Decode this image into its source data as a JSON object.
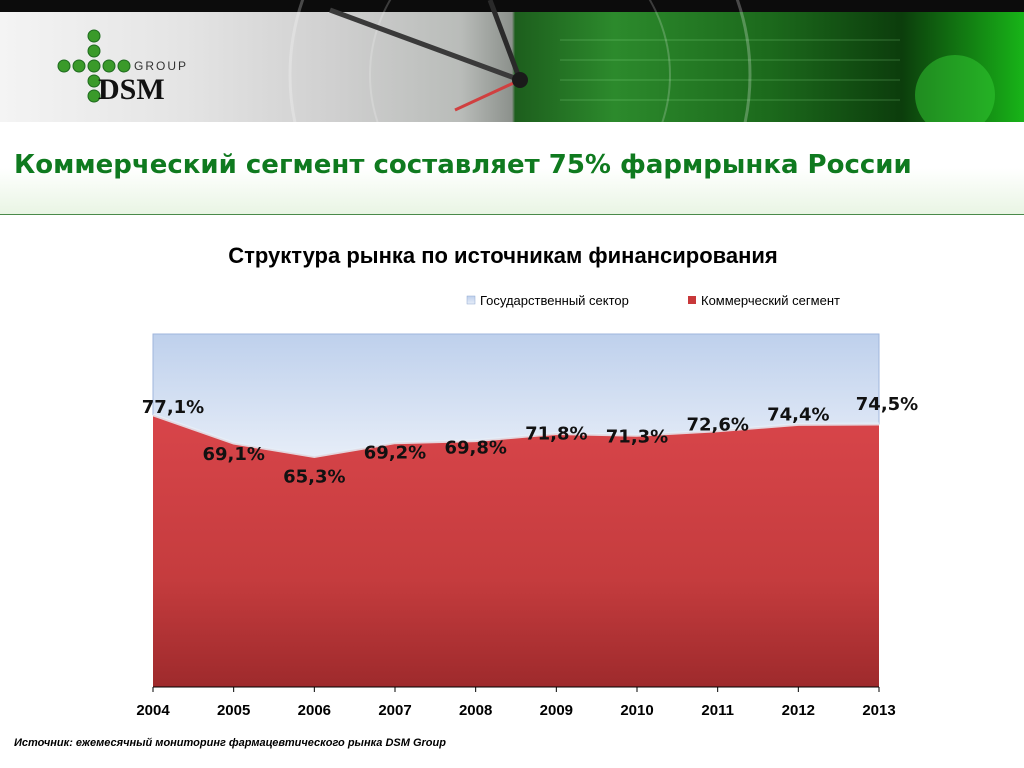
{
  "header": {
    "logo_group_text": "GROUP",
    "logo_brand_text": "DSM",
    "colors": {
      "brand_green": "#0f7a1f",
      "logo_green": "#3a9a2a"
    }
  },
  "page": {
    "title": "Коммерческий сегмент составляет 75% фармрынка России",
    "source": "Источник: ежемесячный мониторинг фармацевтического рынка DSM Group"
  },
  "chart_data": {
    "type": "area",
    "stacked_percent": true,
    "title": "Структура рынка по источникам финансирования",
    "xlabel": "",
    "ylabel": "",
    "x": [
      "2004",
      "2005",
      "2006",
      "2007",
      "2008",
      "2009",
      "2010",
      "2011",
      "2012",
      "2013"
    ],
    "ylim": [
      0,
      100
    ],
    "legend_position": "top-right",
    "grid": false,
    "series": [
      {
        "name": "Государственный сектор",
        "color": "#c9d8ef",
        "values": [
          22.9,
          30.9,
          34.7,
          30.8,
          30.2,
          28.2,
          28.7,
          27.4,
          25.6,
          25.5
        ]
      },
      {
        "name": "Коммерческий сегмент",
        "color": "#c8383a",
        "values": [
          77.1,
          69.1,
          65.3,
          69.2,
          69.8,
          71.8,
          71.3,
          72.6,
          74.4,
          74.5
        ]
      }
    ],
    "data_labels": [
      "77,1%",
      "69,1%",
      "65,3%",
      "69,2%",
      "69,8%",
      "71,8%",
      "71,3%",
      "72,6%",
      "74,4%",
      "74,5%"
    ]
  }
}
